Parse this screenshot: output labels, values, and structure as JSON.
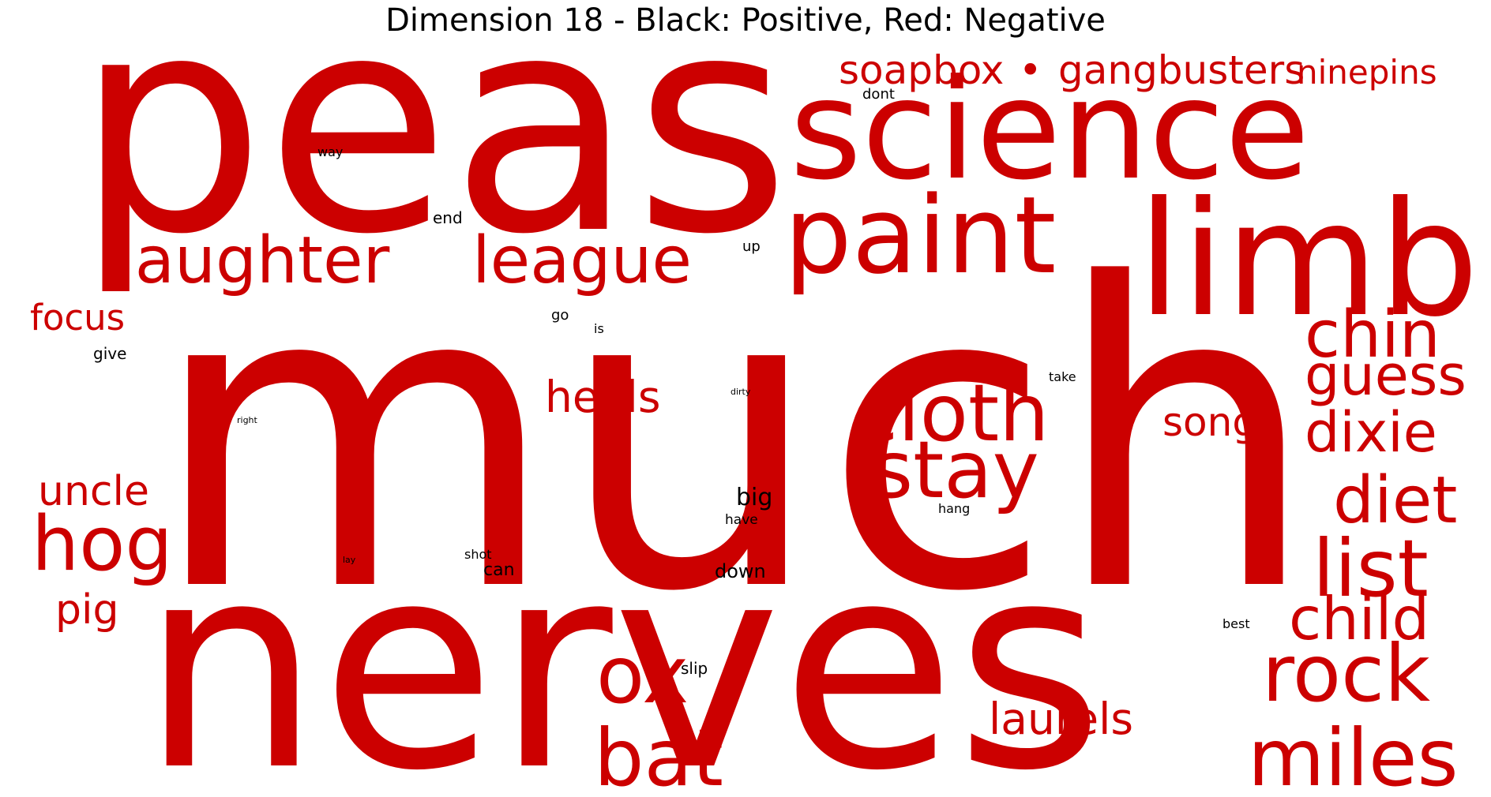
{
  "title": "Dimension 18 - Black: Positive, Red: Negative",
  "colors": {
    "positive": "#000000",
    "negative": "#cc0000",
    "background": "#ffffff"
  },
  "words": [
    {
      "text": "peas",
      "polarity": "negative"
    },
    {
      "text": "science",
      "polarity": "negative"
    },
    {
      "text": "soapbox",
      "polarity": "negative"
    },
    {
      "text": "•",
      "polarity": "negative"
    },
    {
      "text": "gangbusters",
      "polarity": "negative"
    },
    {
      "text": "ninepins",
      "polarity": "negative"
    },
    {
      "text": "limb",
      "polarity": "negative"
    },
    {
      "text": "paint",
      "polarity": "negative"
    },
    {
      "text": "laughter",
      "polarity": "negative"
    },
    {
      "text": "league",
      "polarity": "negative"
    },
    {
      "text": "much",
      "polarity": "negative"
    },
    {
      "text": "chin",
      "polarity": "negative"
    },
    {
      "text": "guess",
      "polarity": "negative"
    },
    {
      "text": "focus",
      "polarity": "negative"
    },
    {
      "text": "cloth",
      "polarity": "negative"
    },
    {
      "text": "heels",
      "polarity": "negative"
    },
    {
      "text": "dixie",
      "polarity": "negative"
    },
    {
      "text": "song",
      "polarity": "negative"
    },
    {
      "text": "stay",
      "polarity": "negative"
    },
    {
      "text": "uncle",
      "polarity": "negative"
    },
    {
      "text": "hog",
      "polarity": "negative"
    },
    {
      "text": "diet",
      "polarity": "negative"
    },
    {
      "text": "list",
      "polarity": "negative"
    },
    {
      "text": "pig",
      "polarity": "negative"
    },
    {
      "text": "child",
      "polarity": "negative"
    },
    {
      "text": "nerves",
      "polarity": "negative"
    },
    {
      "text": "ox",
      "polarity": "negative"
    },
    {
      "text": "rock",
      "polarity": "negative"
    },
    {
      "text": "laurels",
      "polarity": "negative"
    },
    {
      "text": "bat",
      "polarity": "negative"
    },
    {
      "text": "miles",
      "polarity": "negative"
    },
    {
      "text": "dont",
      "polarity": "positive"
    },
    {
      "text": "way",
      "polarity": "positive"
    },
    {
      "text": "end",
      "polarity": "positive"
    },
    {
      "text": "up",
      "polarity": "positive"
    },
    {
      "text": "go",
      "polarity": "positive"
    },
    {
      "text": "is",
      "polarity": "positive"
    },
    {
      "text": "give",
      "polarity": "positive"
    },
    {
      "text": "take",
      "polarity": "positive"
    },
    {
      "text": "dirty",
      "polarity": "positive"
    },
    {
      "text": "right",
      "polarity": "positive"
    },
    {
      "text": "big",
      "polarity": "positive"
    },
    {
      "text": "have",
      "polarity": "positive"
    },
    {
      "text": "hang",
      "polarity": "positive"
    },
    {
      "text": "shot",
      "polarity": "positive"
    },
    {
      "text": "can",
      "polarity": "positive"
    },
    {
      "text": "lay",
      "polarity": "positive"
    },
    {
      "text": "down",
      "polarity": "positive"
    },
    {
      "text": "best",
      "polarity": "positive"
    },
    {
      "text": "slip",
      "polarity": "positive"
    }
  ]
}
